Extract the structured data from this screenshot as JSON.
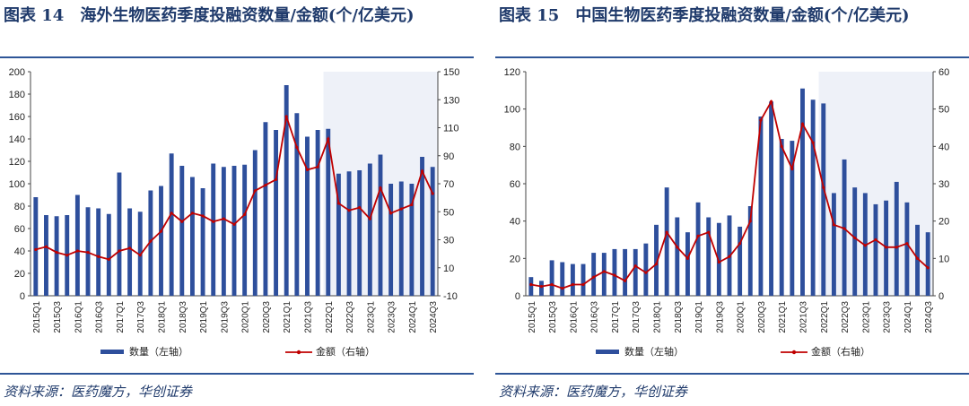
{
  "charts": [
    {
      "title": "图表 14　海外生物医药季度投融资数量/金额(个/亿美元)",
      "source": "资料来源：医药魔方，华创证券",
      "chart_data": {
        "type": "bar+line",
        "categories": [
          "2015Q1",
          "2015Q2",
          "2015Q3",
          "2015Q4",
          "2016Q1",
          "2016Q2",
          "2016Q3",
          "2016Q4",
          "2017Q1",
          "2017Q2",
          "2017Q3",
          "2017Q4",
          "2018Q1",
          "2018Q2",
          "2018Q3",
          "2018Q4",
          "2019Q1",
          "2019Q2",
          "2019Q3",
          "2019Q4",
          "2020Q1",
          "2020Q2",
          "2020Q3",
          "2020Q4",
          "2021Q1",
          "2021Q2",
          "2021Q3",
          "2021Q4",
          "2022Q1",
          "2022Q2",
          "2022Q3",
          "2022Q4",
          "2023Q1",
          "2023Q2",
          "2023Q3",
          "2023Q4",
          "2024Q1",
          "2024Q2",
          "2024Q3"
        ],
        "tick_labels": [
          "2015Q1",
          "2015Q3",
          "2016Q1",
          "2016Q3",
          "2017Q1",
          "2017Q3",
          "2018Q1",
          "2018Q3",
          "2019Q1",
          "2019Q3",
          "2020Q1",
          "2020Q3",
          "2021Q1",
          "2021Q3",
          "2022Q1",
          "2022Q3",
          "2023Q1",
          "2023Q3",
          "2024Q1",
          "2024Q3"
        ],
        "series": [
          {
            "name": "数量（左轴）",
            "axis": "left",
            "type": "bar",
            "values": [
              88,
              72,
              71,
              72,
              90,
              79,
              78,
              73,
              110,
              78,
              75,
              94,
              98,
              127,
              116,
              106,
              96,
              118,
              115,
              116,
              117,
              130,
              155,
              148,
              188,
              163,
              142,
              148,
              149,
              109,
              111,
              112,
              118,
              126,
              100,
              102,
              100,
              124,
              115
            ]
          },
          {
            "name": "金额（右轴）",
            "axis": "right",
            "type": "line",
            "values": [
              23,
              25,
              21,
              19,
              22,
              21,
              18,
              16,
              22,
              24,
              19,
              29,
              36,
              49,
              43,
              49,
              47,
              43,
              45,
              41,
              48,
              65,
              69,
              73,
              118,
              96,
              80,
              82,
              102,
              56,
              51,
              53,
              45,
              67,
              49,
              52,
              55,
              79,
              63
            ]
          }
        ],
        "left_axis": {
          "min": 0,
          "max": 200,
          "step": 20
        },
        "right_axis": {
          "min": -10,
          "max": 150,
          "step": 20
        },
        "shade_from": "2022Q1",
        "bar_color": "#2e4f9c",
        "line_color": "#c00000",
        "shade_color": "#eef1f8"
      }
    },
    {
      "title": "图表 15　中国生物医药季度投融资数量/金额(个/亿美元)",
      "source": "资料来源：医药魔方，华创证券",
      "chart_data": {
        "type": "bar+line",
        "categories": [
          "2015Q1",
          "2015Q2",
          "2015Q3",
          "2015Q4",
          "2016Q1",
          "2016Q2",
          "2016Q3",
          "2016Q4",
          "2017Q1",
          "2017Q2",
          "2017Q3",
          "2017Q4",
          "2018Q1",
          "2018Q2",
          "2018Q3",
          "2018Q4",
          "2019Q1",
          "2019Q2",
          "2019Q3",
          "2019Q4",
          "2020Q1",
          "2020Q2",
          "2020Q3",
          "2020Q4",
          "2021Q1",
          "2021Q2",
          "2021Q3",
          "2021Q4",
          "2022Q1",
          "2022Q2",
          "2022Q3",
          "2022Q4",
          "2023Q1",
          "2023Q2",
          "2023Q3",
          "2023Q4",
          "2024Q1",
          "2024Q2",
          "2024Q3"
        ],
        "tick_labels": [
          "2015Q1",
          "2015Q3",
          "2016Q1",
          "2016Q3",
          "2017Q1",
          "2017Q3",
          "2018Q1",
          "2018Q3",
          "2019Q1",
          "2019Q3",
          "2020Q1",
          "2020Q3",
          "2021Q1",
          "2021Q3",
          "2022Q1",
          "2022Q3",
          "2023Q1",
          "2023Q3",
          "2024Q1",
          "2024Q3"
        ],
        "series": [
          {
            "name": "数量（左轴）",
            "axis": "left",
            "type": "bar",
            "values": [
              10,
              8,
              19,
              18,
              17,
              17,
              23,
              23,
              25,
              25,
              25,
              28,
              38,
              58,
              42,
              34,
              50,
              42,
              39,
              43,
              37,
              48,
              96,
              104,
              84,
              83,
              111,
              105,
              103,
              55,
              73,
              58,
              55,
              49,
              51,
              61,
              50,
              38,
              34
            ]
          },
          {
            "name": "金额（右轴）",
            "axis": "right",
            "type": "line",
            "values": [
              3,
              2.5,
              3,
              2,
              3,
              3,
              5,
              6.5,
              5.5,
              4,
              8,
              6.2,
              8.5,
              17,
              13,
              10,
              16,
              17,
              9,
              10.5,
              14,
              20,
              47,
              52,
              40,
              34,
              46,
              41,
              29,
              19,
              18,
              15.5,
              13.5,
              15,
              13,
              13,
              14,
              10,
              7.5
            ]
          }
        ],
        "left_axis": {
          "min": 0,
          "max": 120,
          "step": 20
        },
        "right_axis": {
          "min": 0,
          "max": 60,
          "step": 10
        },
        "shade_from": "2022Q1",
        "bar_color": "#2e4f9c",
        "line_color": "#c00000",
        "shade_color": "#eef1f8"
      }
    }
  ]
}
